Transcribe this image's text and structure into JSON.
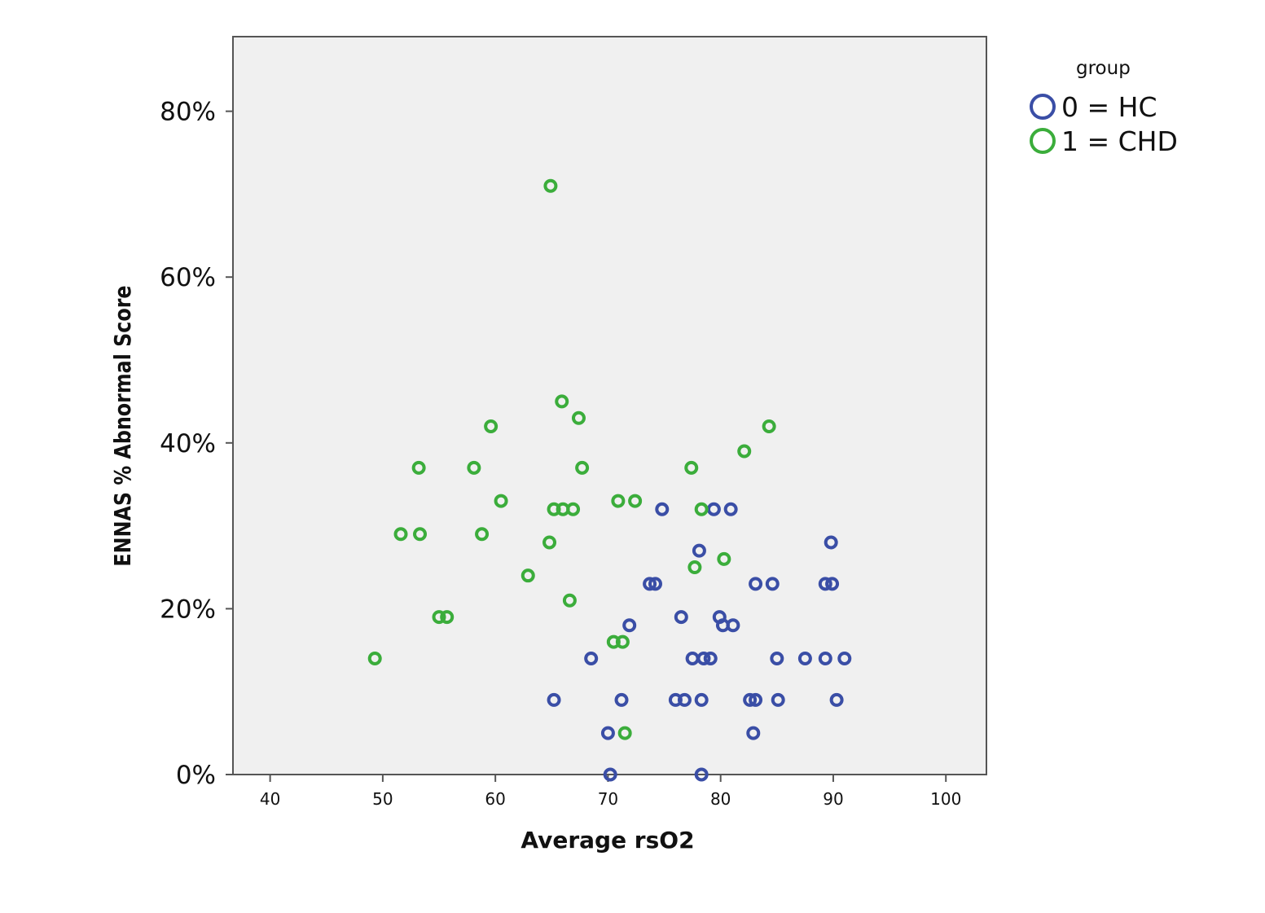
{
  "chart_data": {
    "type": "scatter",
    "xlabel": "Average rsO2",
    "ylabel": "ENNAS % Abnormal Score",
    "xlim": [
      36.7,
      103.6
    ],
    "ylim": [
      0,
      89
    ],
    "x_ticks": [
      {
        "value": 40,
        "label": "40"
      },
      {
        "value": 50,
        "label": "50"
      },
      {
        "value": 60,
        "label": "60"
      },
      {
        "value": 70,
        "label": "70"
      },
      {
        "value": 80,
        "label": "80"
      },
      {
        "value": 90,
        "label": "90"
      },
      {
        "value": 100,
        "label": "100"
      }
    ],
    "y_ticks": [
      {
        "value": 0,
        "label": "0%"
      },
      {
        "value": 20,
        "label": "20%"
      },
      {
        "value": 40,
        "label": "40%"
      },
      {
        "value": 60,
        "label": "60%"
      },
      {
        "value": 80,
        "label": "80%"
      }
    ],
    "grid": false,
    "plot_background": "#f0f0f0",
    "legend": {
      "title": "group",
      "position": "top-right"
    },
    "series": [
      {
        "name": "0 = HC",
        "color": "#3a4ea6",
        "points": [
          [
            74.8,
            32
          ],
          [
            79.4,
            32
          ],
          [
            80.9,
            32
          ],
          [
            78.1,
            27
          ],
          [
            89.8,
            28
          ],
          [
            73.7,
            23
          ],
          [
            74.2,
            23
          ],
          [
            83.1,
            23
          ],
          [
            84.6,
            23
          ],
          [
            89.3,
            23
          ],
          [
            89.9,
            23
          ],
          [
            76.5,
            19
          ],
          [
            79.9,
            19
          ],
          [
            71.9,
            18
          ],
          [
            80.2,
            18
          ],
          [
            81.1,
            18
          ],
          [
            68.5,
            14
          ],
          [
            77.5,
            14
          ],
          [
            78.5,
            14
          ],
          [
            79.1,
            14
          ],
          [
            85.0,
            14
          ],
          [
            87.5,
            14
          ],
          [
            89.3,
            14
          ],
          [
            91.0,
            14
          ],
          [
            65.2,
            9
          ],
          [
            71.2,
            9
          ],
          [
            76.0,
            9
          ],
          [
            76.8,
            9
          ],
          [
            78.3,
            9
          ],
          [
            82.6,
            9
          ],
          [
            83.1,
            9
          ],
          [
            85.1,
            9
          ],
          [
            90.3,
            9
          ],
          [
            70.0,
            5
          ],
          [
            82.9,
            5
          ],
          [
            70.2,
            0
          ],
          [
            78.3,
            0
          ]
        ]
      },
      {
        "name": "1 = CHD",
        "color": "#3bad3b",
        "points": [
          [
            64.9,
            71
          ],
          [
            65.9,
            45
          ],
          [
            67.4,
            43
          ],
          [
            59.6,
            42
          ],
          [
            84.3,
            42
          ],
          [
            82.1,
            39
          ],
          [
            53.2,
            37
          ],
          [
            58.1,
            37
          ],
          [
            67.7,
            37
          ],
          [
            77.4,
            37
          ],
          [
            60.5,
            33
          ],
          [
            70.9,
            33
          ],
          [
            72.4,
            33
          ],
          [
            65.2,
            32
          ],
          [
            66.0,
            32
          ],
          [
            66.9,
            32
          ],
          [
            78.3,
            32
          ],
          [
            51.6,
            29
          ],
          [
            53.3,
            29
          ],
          [
            58.8,
            29
          ],
          [
            64.8,
            28
          ],
          [
            80.3,
            26
          ],
          [
            77.7,
            25
          ],
          [
            62.9,
            24
          ],
          [
            66.6,
            21
          ],
          [
            55.0,
            19
          ],
          [
            55.7,
            19
          ],
          [
            70.5,
            16
          ],
          [
            71.3,
            16
          ],
          [
            49.3,
            14
          ],
          [
            71.5,
            5
          ]
        ]
      }
    ]
  }
}
